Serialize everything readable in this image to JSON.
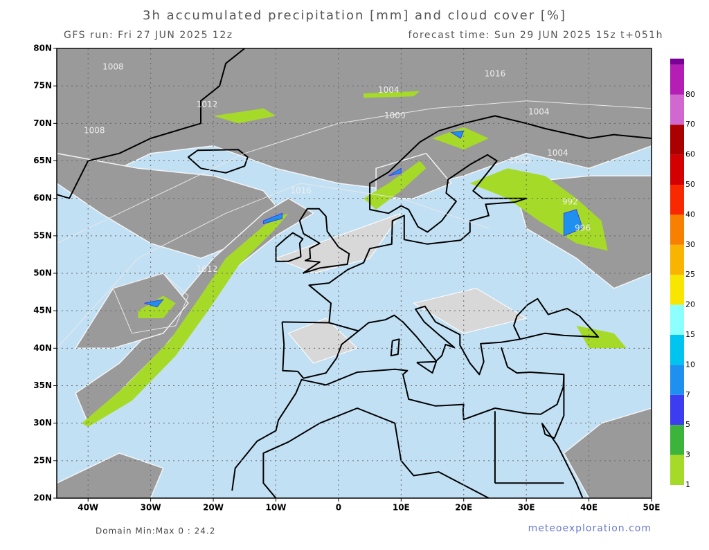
{
  "header": {
    "title": "3h accumulated precipitation [mm] and cloud cover [%]",
    "run": "GFS run: Fri 27 JUN 2025 12z",
    "forecast": "forecast time: Sun 29 JUN 2025 15z  t+051h"
  },
  "map": {
    "lonlim": [
      -45,
      50
    ],
    "latlim": [
      20,
      80
    ],
    "lon_ticks": [
      {
        "value": -40,
        "label": "40W"
      },
      {
        "value": -30,
        "label": "30W"
      },
      {
        "value": -20,
        "label": "20W"
      },
      {
        "value": -10,
        "label": "10W"
      },
      0,
      {
        "value": 10,
        "label": "10E"
      },
      {
        "value": 20,
        "label": "20E"
      },
      {
        "value": 30,
        "label": "30E"
      },
      {
        "value": 40,
        "label": "40E"
      },
      {
        "value": 50,
        "label": "50E"
      }
    ],
    "lat_ticks": [
      {
        "value": 20,
        "label": "20N"
      },
      {
        "value": 25,
        "label": "25N"
      },
      {
        "value": 30,
        "label": "30N"
      },
      {
        "value": 35,
        "label": "35N"
      },
      {
        "value": 40,
        "label": "40N"
      },
      {
        "value": 45,
        "label": "45N"
      },
      {
        "value": 50,
        "label": "50N"
      },
      {
        "value": 55,
        "label": "55N"
      },
      {
        "value": 60,
        "label": "60N"
      },
      {
        "value": 65,
        "label": "65N"
      },
      {
        "value": 70,
        "label": "70N"
      },
      {
        "value": 75,
        "label": "75N"
      },
      {
        "value": 80,
        "label": "80N"
      }
    ],
    "grid": true,
    "isobar_labels": [
      "1008",
      "1012",
      "1008",
      "1004",
      "1000",
      "1016",
      "1004",
      "1000",
      "992",
      "996",
      "1016",
      "1012",
      "1004"
    ]
  },
  "colorbar": {
    "levels": [
      1,
      3,
      5,
      7,
      10,
      15,
      20,
      25,
      30,
      40,
      50,
      60,
      70,
      80
    ],
    "colors": [
      "#a6da28",
      "#3cb43c",
      "#3c3cf0",
      "#1e90f0",
      "#00c4f0",
      "#8cffff",
      "#f8e600",
      "#f8b400",
      "#f88000",
      "#f82800",
      "#d20000",
      "#aa0000",
      "#d068d0",
      "#b41eb4"
    ],
    "top_color": "#7a0096"
  },
  "footer": {
    "minmax": "Domain Min:Max 0 : 24.2",
    "site": "meteoexploration.com"
  }
}
